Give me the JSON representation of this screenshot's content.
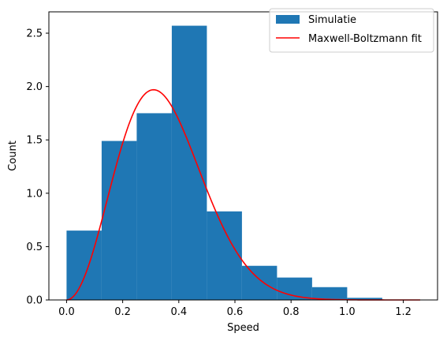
{
  "chart_data": {
    "type": "bar",
    "xlabel": "Speed",
    "ylabel": "Count",
    "xlim": [
      -0.063,
      1.322
    ],
    "ylim": [
      0,
      2.7
    ],
    "xticks": [
      0.0,
      0.2,
      0.4,
      0.6,
      0.8,
      1.0,
      1.2
    ],
    "xtick_labels": [
      "0.0",
      "0.2",
      "0.4",
      "0.6",
      "0.8",
      "1.0",
      "1.2"
    ],
    "yticks": [
      0.0,
      0.5,
      1.0,
      1.5,
      2.0,
      2.5
    ],
    "ytick_labels": [
      "0.0",
      "0.5",
      "1.0",
      "1.5",
      "2.0",
      "2.5"
    ],
    "histogram": {
      "name": "Simulatie",
      "color": "#1f77b4",
      "bin_edges": [
        0.0,
        0.125,
        0.25,
        0.375,
        0.5,
        0.625,
        0.75,
        0.875,
        1.0,
        1.125,
        1.25
      ],
      "values": [
        0.65,
        1.49,
        1.75,
        2.57,
        0.83,
        0.32,
        0.21,
        0.12,
        0.02,
        0.0
      ]
    },
    "fit_line": {
      "name": "Maxwell-Boltzmann fit",
      "color": "#ff0000",
      "x_range": [
        0.0,
        1.26
      ],
      "peak": [
        0.31,
        1.97
      ]
    },
    "legend": {
      "placement": "top-right",
      "entries": [
        "Simulatie",
        "Maxwell-Boltzmann fit"
      ]
    },
    "grid": false
  }
}
